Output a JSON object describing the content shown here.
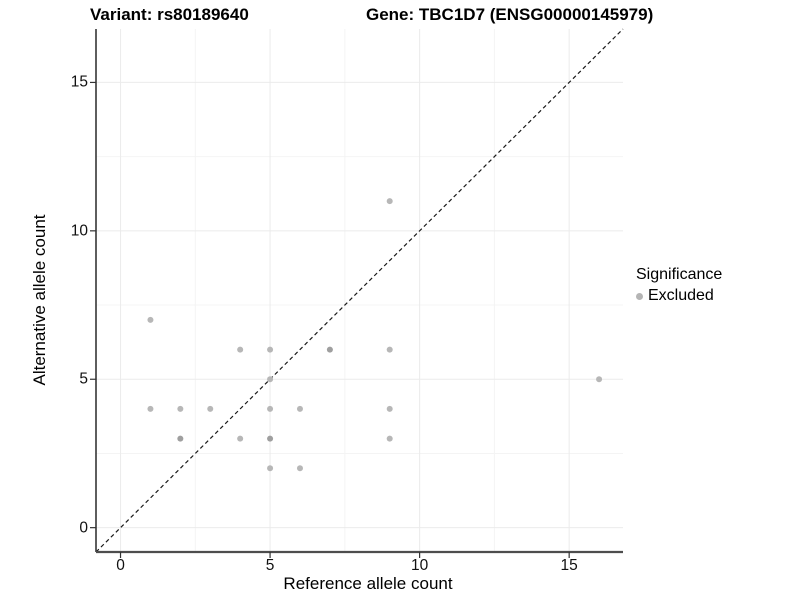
{
  "titles": {
    "left": "Variant: rs80189640",
    "right": "Gene: TBC1D7 (ENSG00000145979)"
  },
  "legend": {
    "title": "Significance",
    "items": [
      {
        "label": "Excluded",
        "color": "#b5b5b5"
      }
    ]
  },
  "chart_data": {
    "type": "scatter",
    "title_left": "Variant: rs80189640",
    "title_right": "Gene: TBC1D7 (ENSG00000145979)",
    "xlabel": "Reference allele count",
    "ylabel": "Alternative allele count",
    "xlim": [
      -0.82,
      16.8
    ],
    "ylim": [
      -0.82,
      16.8
    ],
    "x_major_ticks": [
      0,
      5,
      10,
      15
    ],
    "y_major_ticks": [
      0,
      5,
      10,
      15
    ],
    "x_minor_gridlines": [
      2.5,
      7.5,
      12.5
    ],
    "y_minor_gridlines": [
      2.5,
      7.5,
      12.5
    ],
    "grid": true,
    "legend_position": "right",
    "identity_line": {
      "shown": true,
      "style": "dashed",
      "equation": "y = x"
    },
    "series": [
      {
        "name": "Excluded",
        "color": "#b7b7b7",
        "overlap_color": "#9f9f9f",
        "points": [
          {
            "x": 1,
            "y": 7,
            "overlap": false
          },
          {
            "x": 1,
            "y": 4,
            "overlap": false
          },
          {
            "x": 2,
            "y": 4,
            "overlap": false
          },
          {
            "x": 2,
            "y": 3,
            "overlap": true
          },
          {
            "x": 3,
            "y": 4,
            "overlap": false
          },
          {
            "x": 4,
            "y": 6,
            "overlap": false
          },
          {
            "x": 4,
            "y": 3,
            "overlap": false
          },
          {
            "x": 5,
            "y": 6,
            "overlap": false
          },
          {
            "x": 5,
            "y": 5,
            "overlap": false
          },
          {
            "x": 5,
            "y": 4,
            "overlap": false
          },
          {
            "x": 5,
            "y": 3,
            "overlap": true
          },
          {
            "x": 5,
            "y": 2,
            "overlap": false
          },
          {
            "x": 6,
            "y": 4,
            "overlap": false
          },
          {
            "x": 6,
            "y": 2,
            "overlap": false
          },
          {
            "x": 7,
            "y": 6,
            "overlap": true
          },
          {
            "x": 9,
            "y": 11,
            "overlap": false
          },
          {
            "x": 9,
            "y": 6,
            "overlap": false
          },
          {
            "x": 9,
            "y": 4,
            "overlap": false
          },
          {
            "x": 9,
            "y": 3,
            "overlap": false
          },
          {
            "x": 16,
            "y": 5,
            "overlap": false
          }
        ]
      }
    ],
    "colors": {
      "major_grid": "#ebebeb",
      "minor_grid": "#f4f4f4",
      "axis_line_left": "#1a1a1a",
      "axis_line_bottom": "#4d4d4d",
      "tick_mark": "#333333",
      "dashed_line": "#1a1a1a",
      "background": "#ffffff"
    }
  }
}
